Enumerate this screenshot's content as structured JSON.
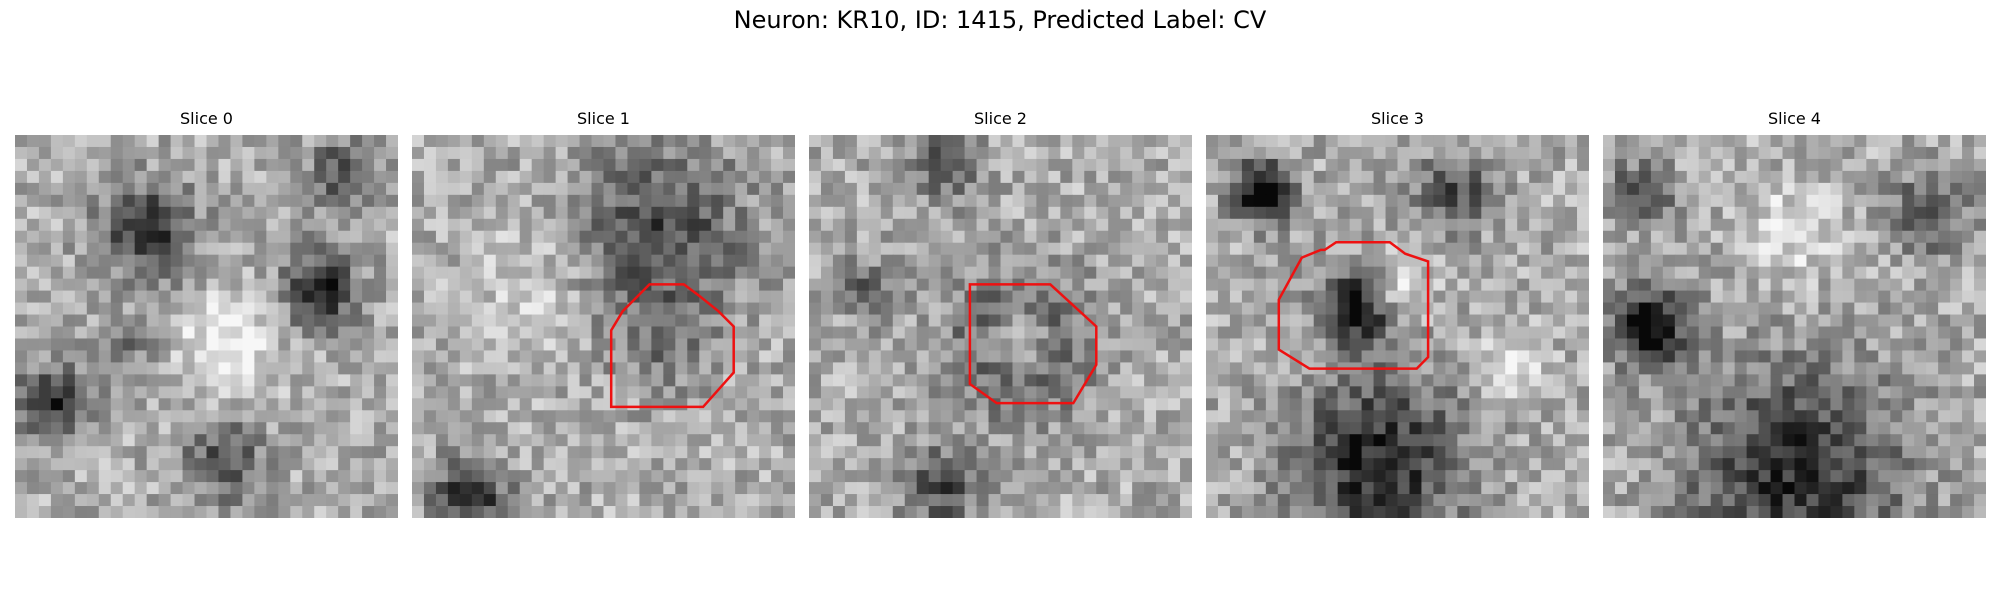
{
  "figure": {
    "title": "Neuron: KR10, ID: 1415, Predicted Label: CV",
    "contour_color": "#ee1111"
  },
  "slices": [
    {
      "title": "Slice 0",
      "has_roi": false
    },
    {
      "title": "Slice 1",
      "has_roi": true
    },
    {
      "title": "Slice 2",
      "has_roi": true
    },
    {
      "title": "Slice 3",
      "has_roi": true
    },
    {
      "title": "Slice 4",
      "has_roi": false
    }
  ]
}
